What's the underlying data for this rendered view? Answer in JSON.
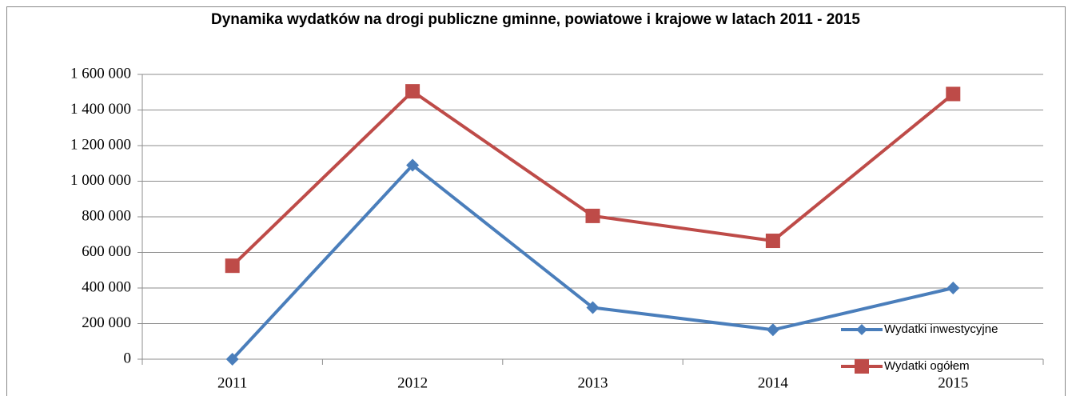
{
  "chart_data": {
    "type": "line",
    "title": "Dynamika wydatków na drogi publiczne gminne, powiatowe i krajowe w latach 2011 - 2015",
    "categories": [
      "2011",
      "2012",
      "2013",
      "2014",
      "2015"
    ],
    "series": [
      {
        "name": "Wydatki inwestycyjne",
        "color": "#4a7ebb",
        "marker": "diamond",
        "values": [
          0,
          1090000,
          290000,
          165000,
          400000
        ]
      },
      {
        "name": "Wydatki ogółem",
        "color": "#be4b48",
        "marker": "square",
        "values": [
          525000,
          1505000,
          805000,
          665000,
          1490000
        ]
      }
    ],
    "ylim": [
      0,
      1600000
    ],
    "yticks": [
      0,
      {
        "value": 200000,
        "label": "200 000"
      },
      {
        "value": 400000,
        "label": "400 000"
      },
      {
        "value": 600000,
        "label": "600 000"
      },
      {
        "value": 800000,
        "label": "800 000"
      },
      {
        "value": 1000000,
        "label": "1 000 000"
      },
      {
        "value": 1200000,
        "label": "1 200 000"
      },
      {
        "value": 1400000,
        "label": "1 400 000"
      },
      {
        "value": 1600000,
        "label": "1 600 000"
      }
    ],
    "grid": true,
    "legend": "lower right"
  }
}
